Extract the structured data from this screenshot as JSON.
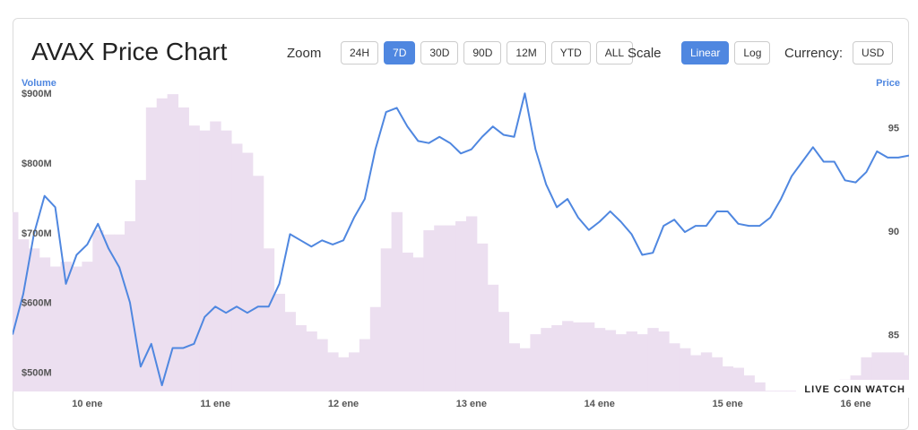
{
  "header": {
    "title": "AVAX Price Chart",
    "zoom_label": "Zoom",
    "zoom_options": [
      "24H",
      "7D",
      "30D",
      "90D",
      "12M",
      "YTD",
      "ALL"
    ],
    "zoom_active": "7D",
    "scale_label": "Scale",
    "scale_options": [
      "Linear",
      "Log"
    ],
    "scale_active": "Linear",
    "currency_label": "Currency:",
    "currency": "USD"
  },
  "chart_data": {
    "type": "line",
    "ylabel": "Volume",
    "y2label": "Price",
    "watermark": "LIVE COIN WATCH",
    "categories": [
      null,
      null,
      null,
      null,
      null,
      null,
      null,
      "10 ene",
      null,
      null,
      null,
      null,
      null,
      null,
      null,
      null,
      null,
      null,
      null,
      "11 ene",
      null,
      null,
      null,
      null,
      null,
      null,
      null,
      null,
      null,
      null,
      null,
      "12 ene",
      null,
      null,
      null,
      null,
      null,
      null,
      null,
      null,
      null,
      null,
      null,
      "13 ene",
      null,
      null,
      null,
      null,
      null,
      null,
      null,
      null,
      null,
      null,
      null,
      "14 ene",
      null,
      null,
      null,
      null,
      null,
      null,
      null,
      null,
      null,
      null,
      null,
      "15 ene",
      null,
      null,
      null,
      null,
      null,
      null,
      null,
      null,
      null,
      null,
      null,
      "16 ene",
      null,
      null,
      null,
      null,
      null
    ],
    "series": [
      {
        "type": "area",
        "axis": "y",
        "color": "#ecdff0",
        "values": [
          731000000,
          692000000,
          679000000,
          666000000,
          653000000,
          660000000,
          653000000,
          660000000,
          705000000,
          699000000,
          699000000,
          718000000,
          777000000,
          881000000,
          894000000,
          900000000,
          881000000,
          855000000,
          848000000,
          861000000,
          848000000,
          829000000,
          816000000,
          783000000,
          679000000,
          614000000,
          588000000,
          569000000,
          560000000,
          549000000,
          530000000,
          523000000,
          530000000,
          549000000,
          595000000,
          679000000,
          731000000,
          673000000,
          666000000,
          705000000,
          712000000,
          712000000,
          718000000,
          725000000,
          686000000,
          627000000,
          588000000,
          543000000,
          536000000,
          556000000,
          565000000,
          569000000,
          575000000,
          573000000,
          573000000,
          565000000,
          562000000,
          556000000,
          560000000,
          556000000,
          565000000,
          560000000,
          543000000,
          536000000,
          526000000,
          530000000,
          523000000,
          510000000,
          508000000,
          497000000,
          487000000,
          475000000,
          475000000,
          475000000,
          487000000,
          487000000,
          487000000,
          487000000,
          491000000,
          497000000,
          523000000,
          530000000,
          530000000,
          530000000,
          526000000
        ]
      },
      {
        "type": "line",
        "axis": "y2",
        "color": "#4f87e0",
        "values": [
          85.05,
          87.0,
          89.9,
          91.75,
          91.2,
          87.5,
          88.9,
          89.4,
          90.4,
          89.2,
          88.3,
          86.6,
          83.5,
          84.6,
          82.6,
          84.4,
          84.4,
          84.6,
          85.9,
          86.4,
          86.1,
          86.4,
          86.1,
          86.4,
          86.4,
          87.5,
          89.9,
          89.6,
          89.3,
          89.6,
          89.4,
          89.6,
          90.7,
          91.6,
          94.0,
          95.8,
          96.0,
          95.1,
          94.4,
          94.3,
          94.6,
          94.3,
          93.8,
          94.0,
          94.6,
          95.1,
          94.7,
          94.6,
          96.7,
          94.0,
          92.3,
          91.2,
          91.6,
          90.7,
          90.1,
          90.5,
          91.0,
          90.5,
          89.9,
          88.9,
          89.0,
          90.3,
          90.6,
          90.0,
          90.3,
          90.3,
          91.0,
          91.0,
          90.4,
          90.3,
          90.3,
          90.7,
          91.6,
          92.7,
          93.4,
          94.1,
          93.4,
          93.4,
          92.5,
          92.4,
          92.9,
          93.9,
          93.6,
          93.6,
          93.7
        ]
      }
    ],
    "ylim": [
      474000000,
      913000000
    ],
    "yticks": [
      {
        "value": 500000000,
        "label": "$500M"
      },
      {
        "value": 600000000,
        "label": "$600M"
      },
      {
        "value": 700000000,
        "label": "$700M"
      },
      {
        "value": 800000000,
        "label": "$800M"
      },
      {
        "value": 900000000,
        "label": "$900M"
      }
    ],
    "y2lim": [
      82.3,
      97.1
    ],
    "y2ticks": [
      85,
      90,
      95
    ]
  }
}
